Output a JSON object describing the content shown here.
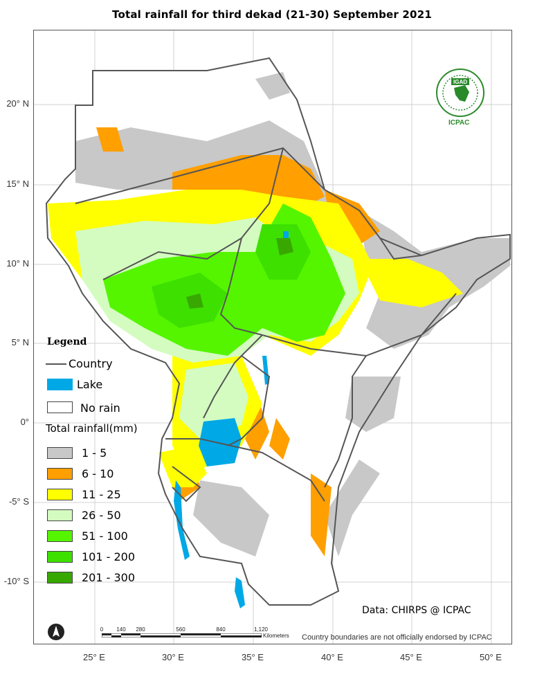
{
  "title": "Total rainfall for third  dekad (21-30) September  2021",
  "lat_labels": [
    "20° N",
    "15° N",
    "10° N",
    "5° N",
    "0°",
    "-5° S",
    "-10° S"
  ],
  "lon_labels": [
    "25° E",
    "30° E",
    "35° E",
    "40° E",
    "45° E",
    "50° E"
  ],
  "legend": {
    "heading": "Legend",
    "country": "Country",
    "lake": "Lake",
    "no_rain": "No rain",
    "rainfall_heading": "Total rainfall(mm)",
    "classes": [
      {
        "label": "1 - 5",
        "color": "#c8c8c8"
      },
      {
        "label": "6 - 10",
        "color": "#ff9f00"
      },
      {
        "label": "11 - 25",
        "color": "#ffff00"
      },
      {
        "label": "26 - 50",
        "color": "#d4fcc0"
      },
      {
        "label": "51 - 100",
        "color": "#55f500"
      },
      {
        "label": "101 - 200",
        "color": "#3ee000"
      },
      {
        "label": "201 - 300",
        "color": "#38a800"
      }
    ],
    "lake_color": "#00a8e6"
  },
  "scale_bar": {
    "ticks": [
      "0",
      "140",
      "280",
      "560",
      "840",
      "1,120"
    ],
    "unit": "Kilometers"
  },
  "logo": {
    "text": "IGAD",
    "org": "ICPAC",
    "icon": "igad-emblem-icon"
  },
  "north_arrow_icon": "north-arrow-icon",
  "credit": "Data: CHIRPS @ ICPAC",
  "disclaimer": "Country boundaries are not officially endorsed by ICPAC"
}
